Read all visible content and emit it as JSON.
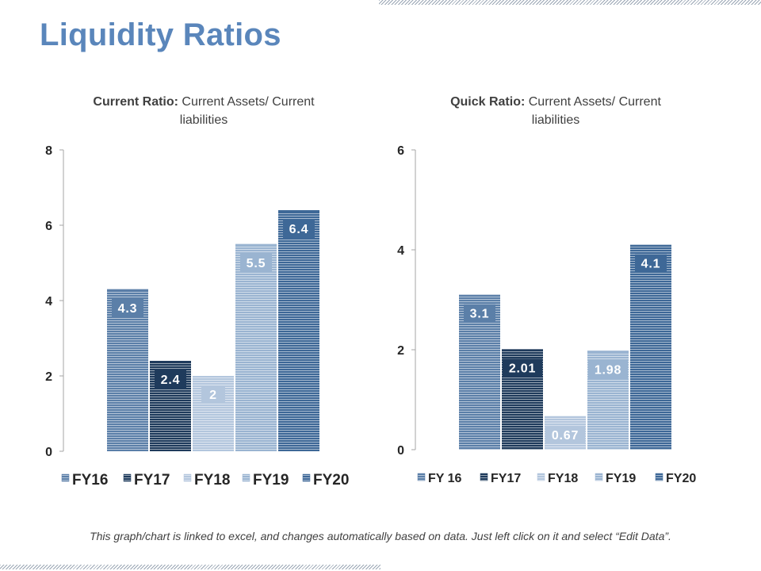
{
  "page": {
    "title": "Liquidity Ratios"
  },
  "footer": {
    "note": "This graph/chart is linked to excel, and changes automatically based on data. Just left click on it and select “Edit Data”."
  },
  "chart_data": [
    {
      "type": "bar",
      "title_bold": "Current Ratio:",
      "title_rest_line1": "Current Assets/ Current",
      "title_line2": "liabilities",
      "categories": [
        "FY16",
        "FY17",
        "FY18",
        "FY19",
        "FY20"
      ],
      "values": [
        4.3,
        2.4,
        2,
        5.5,
        6.4
      ],
      "value_labels": [
        "4.3",
        "2.4",
        "2",
        "5.5",
        "6.4"
      ],
      "legend": [
        "FY16",
        "FY17",
        "FY18",
        "FY19",
        "FY20"
      ],
      "colors": [
        "#5b7fa8",
        "#1f3b5c",
        "#b3c6dd",
        "#9ab4d1",
        "#3e6897"
      ],
      "ylim": [
        0,
        8
      ],
      "yticks": [
        0,
        2,
        4,
        6,
        8
      ],
      "legend_position": "bottom"
    },
    {
      "type": "bar",
      "title_bold": "Quick Ratio:",
      "title_rest_line1": "Current Assets/ Current",
      "title_line2": "liabilities",
      "categories": [
        "FY 16",
        "FY17",
        "FY18",
        "FY19",
        "FY20"
      ],
      "values": [
        3.1,
        2.01,
        0.67,
        1.98,
        4.1
      ],
      "value_labels": [
        "3.1",
        "2.01",
        "0.67",
        "1.98",
        "4.1"
      ],
      "legend": [
        "FY 16",
        "FY17",
        "FY18",
        "FY19",
        "FY20"
      ],
      "colors": [
        "#5b7fa8",
        "#1f3b5c",
        "#b3c6dd",
        "#9ab4d1",
        "#3e6897"
      ],
      "ylim": [
        0,
        6
      ],
      "yticks": [
        0,
        2,
        4,
        6
      ],
      "legend_position": "bottom"
    }
  ]
}
